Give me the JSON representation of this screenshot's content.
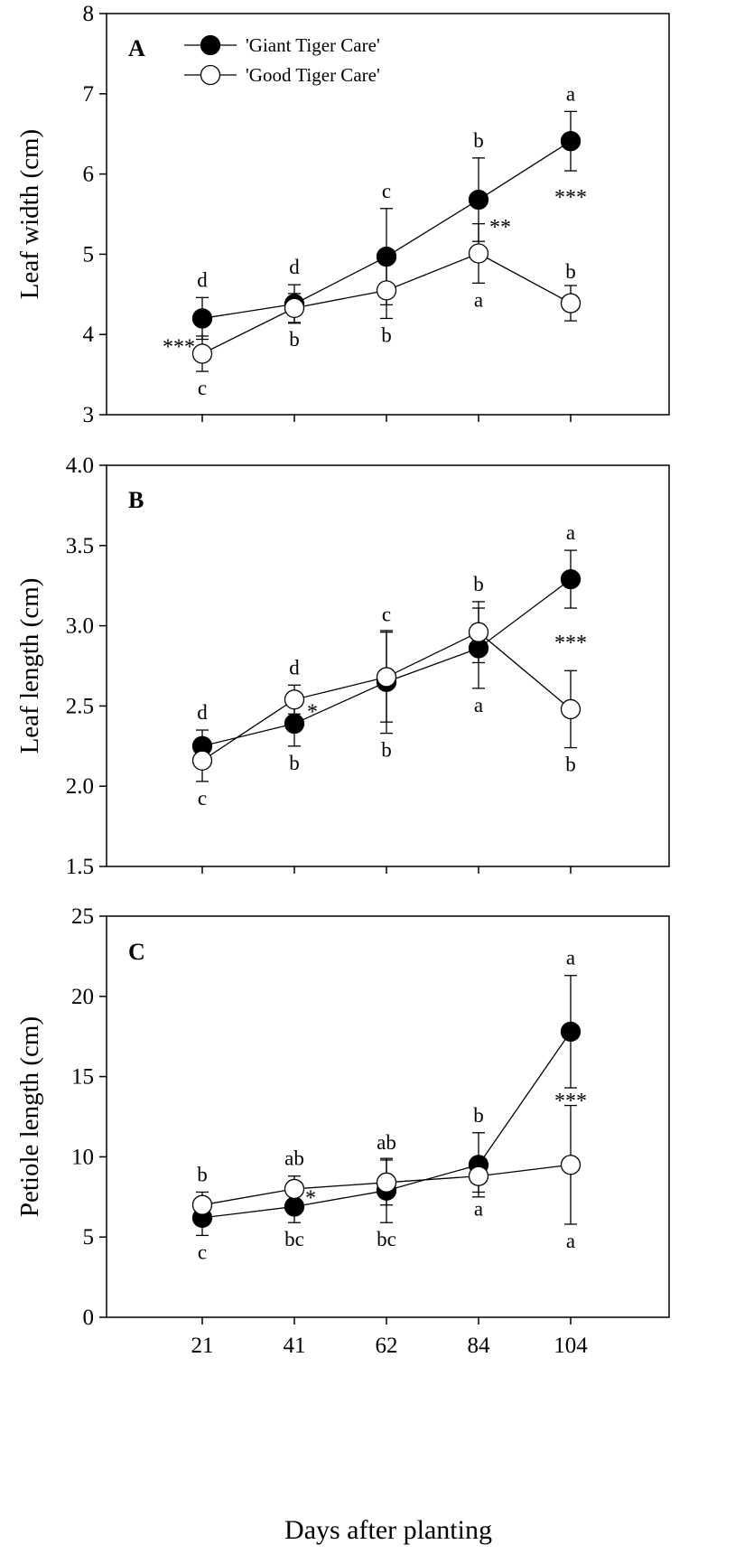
{
  "x_axis_label": "Days after planting",
  "legend": [
    {
      "label": "'Giant Tiger Care'",
      "marker": "filled-circle"
    },
    {
      "label": "'Good Tiger Care'",
      "marker": "open-circle"
    }
  ],
  "colors": {
    "filled": "#000000",
    "open": "#ffffff",
    "line": "#000000"
  },
  "chart_data": [
    {
      "type": "line",
      "panel_label": "A",
      "ylabel": "Leaf width (cm)",
      "ylim": [
        3,
        8
      ],
      "yticks": [
        "3",
        "4",
        "5",
        "6",
        "7",
        "8"
      ],
      "categories": [
        "21",
        "41",
        "62",
        "84",
        "104"
      ],
      "series": [
        {
          "name": "'Giant Tiger Care'",
          "values": [
            4.2,
            4.38,
            4.97,
            5.68,
            6.41
          ],
          "errors": [
            0.26,
            0.24,
            0.6,
            0.52,
            0.37
          ],
          "letters": [
            "d",
            "d",
            "c",
            "b",
            "a"
          ]
        },
        {
          "name": "'Good Tiger Care'",
          "values": [
            3.76,
            4.33,
            4.55,
            5.01,
            4.39
          ],
          "errors": [
            0.22,
            0.18,
            0.35,
            0.37,
            0.22
          ],
          "letters": [
            "c",
            "b",
            "b",
            "a",
            "b"
          ]
        }
      ],
      "significance": [
        "***",
        "",
        "",
        "**",
        "***"
      ]
    },
    {
      "type": "line",
      "panel_label": "B",
      "ylabel": "Leaf length (cm)",
      "ylim": [
        1.5,
        4.0
      ],
      "yticks": [
        "1.5",
        "2.0",
        "2.5",
        "3.0",
        "3.5",
        "4.0"
      ],
      "categories": [
        "21",
        "41",
        "62",
        "84",
        "104"
      ],
      "series": [
        {
          "name": "'Giant Tiger Care'",
          "values": [
            2.25,
            2.39,
            2.65,
            2.86,
            3.29
          ],
          "errors": [
            0.1,
            0.14,
            0.32,
            0.25,
            0.18
          ],
          "letters": [
            "d",
            "b",
            "b",
            "a",
            "a"
          ]
        },
        {
          "name": "'Good Tiger Care'",
          "values": [
            2.16,
            2.54,
            2.68,
            2.96,
            2.48
          ],
          "errors": [
            0.13,
            0.09,
            0.28,
            0.19,
            0.24
          ],
          "letters": [
            "c",
            "d",
            "c",
            "b",
            "b"
          ]
        }
      ],
      "significance": [
        "",
        "*",
        "",
        "",
        "***"
      ]
    },
    {
      "type": "line",
      "panel_label": "C",
      "ylabel": "Petiole length (cm)",
      "ylim": [
        0,
        25
      ],
      "yticks": [
        "0",
        "5",
        "10",
        "15",
        "20",
        "25"
      ],
      "categories": [
        "21",
        "41",
        "62",
        "84",
        "104"
      ],
      "series": [
        {
          "name": "'Giant Tiger Care'",
          "values": [
            6.2,
            6.9,
            7.9,
            9.5,
            17.8
          ],
          "errors": [
            1.1,
            1.0,
            2.0,
            2.0,
            3.5
          ],
          "letters": [
            "c",
            "bc",
            "bc",
            "b",
            "a"
          ]
        },
        {
          "name": "'Good Tiger Care'",
          "values": [
            7.0,
            8.0,
            8.4,
            8.8,
            9.5
          ],
          "errors": [
            0.8,
            0.8,
            1.4,
            1.0,
            3.7
          ],
          "letters": [
            "b",
            "ab",
            "ab",
            "a",
            "a"
          ]
        }
      ],
      "significance": [
        "",
        "*",
        "",
        "",
        "***"
      ]
    }
  ]
}
